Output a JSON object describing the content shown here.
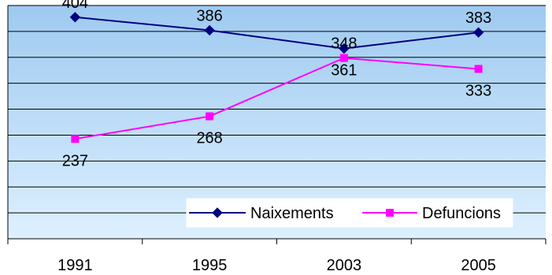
{
  "chart_data": {
    "type": "line",
    "categories": [
      "1991",
      "1995",
      "2003",
      "2005"
    ],
    "ylim": [
      100,
      420
    ],
    "grid": true,
    "legend_position": "bottom-right",
    "series": [
      {
        "name": "Naixements",
        "values": [
          404,
          386,
          361,
          383
        ],
        "color": "#000080",
        "marker": "diamond",
        "labels": [
          "404",
          "386",
          "361",
          "383"
        ]
      },
      {
        "name": "Defuncions",
        "values": [
          237,
          268,
          348,
          333
        ],
        "color": "#FF00FF",
        "marker": "square",
        "labels": [
          "237",
          "268",
          "348",
          "333"
        ]
      }
    ],
    "colors": {
      "plot_background_top": "#9ECAF0",
      "plot_background_bottom": "#DDF0FF",
      "gridline": "#000000"
    }
  }
}
